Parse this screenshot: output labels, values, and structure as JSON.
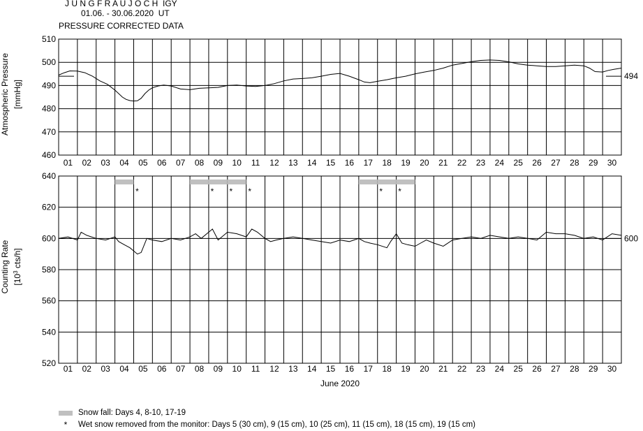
{
  "header": {
    "station": "J U N G F R A U J O C H  IGY",
    "period": "01.06. - 30.06.2020  UT",
    "subtitle": "PRESSURE CORRECTED DATA"
  },
  "legend": {
    "snow_label": "Snow fall: Days 4, 8-10, 17-19",
    "star_glyph": "*",
    "wet_label": "Wet snow removed from the monitor: Days 5 (30 cm), 9 (15 cm), 10 (25 cm), 11 (15 cm), 18 (15 cm), 19 (15 cm)"
  },
  "colors": {
    "line": "#000000",
    "grid": "#000000",
    "snow_bar": "#c0c0c0",
    "background": "#ffffff"
  },
  "chart_data": [
    {
      "type": "line",
      "id": "pressure",
      "ylabel": "Atmospheric Pressure",
      "yunit": "[mmHg]",
      "ylim": [
        460,
        510
      ],
      "yticks": [
        460,
        470,
        480,
        490,
        500,
        510
      ],
      "xlim": [
        0,
        30
      ],
      "xtick_labels": [
        "01",
        "02",
        "03",
        "04",
        "05",
        "06",
        "07",
        "08",
        "09",
        "10",
        "11",
        "12",
        "13",
        "14",
        "15",
        "16",
        "17",
        "18",
        "19",
        "20",
        "21",
        "22",
        "23",
        "24",
        "25",
        "26",
        "27",
        "28",
        "29",
        "30"
      ],
      "reference": {
        "value": 494,
        "label": "494"
      },
      "grid": true,
      "series": [
        {
          "x": [
            0,
            0.3,
            0.6,
            1,
            1.4,
            1.8,
            2.2,
            2.6,
            3,
            3.2,
            3.4,
            3.6,
            3.8,
            4,
            4.2,
            4.4,
            4.6,
            4.8,
            5,
            5.3,
            5.6,
            6,
            6.5,
            7,
            7.5,
            8,
            8.5,
            9,
            9.5,
            10,
            10.5,
            11,
            11.5,
            12,
            12.5,
            13,
            13.5,
            14,
            14.5,
            15,
            15.5,
            16,
            16.3,
            16.6,
            17,
            17.5,
            18,
            18.5,
            19,
            19.5,
            20,
            20.5,
            21,
            21.5,
            22,
            22.5,
            23,
            23.5,
            24,
            24.5,
            25,
            25.5,
            26,
            26.5,
            27,
            27.5,
            28,
            28.3,
            28.6,
            29,
            29.3,
            29.6,
            30
          ],
          "values": [
            494.5,
            495.5,
            496.3,
            496.2,
            495.5,
            494,
            492,
            490.5,
            488,
            486.5,
            485,
            484,
            483.5,
            483.3,
            483.4,
            484.5,
            486.5,
            488,
            489,
            489.8,
            490.2,
            489.8,
            488.5,
            488.2,
            488.8,
            489,
            489.2,
            490,
            490.2,
            489.8,
            489.6,
            490,
            490.8,
            492,
            492.8,
            493,
            493.3,
            494,
            494.8,
            495.2,
            494,
            492.5,
            491.5,
            491.2,
            491.8,
            492.5,
            493.3,
            494,
            495,
            495.8,
            496.5,
            497.5,
            498.8,
            499.5,
            500.3,
            500.8,
            501,
            500.8,
            500.2,
            499.3,
            498.8,
            498.5,
            498.2,
            498.2,
            498.5,
            498.8,
            498.5,
            497.5,
            496,
            495.8,
            496.5,
            497,
            497.5
          ]
        }
      ]
    },
    {
      "type": "line",
      "id": "counting",
      "ylabel": "Counting Rate",
      "yunit_base": "[10",
      "yunit_exp": "3",
      "yunit_tail": " cts/h]",
      "ylim": [
        520,
        640
      ],
      "yticks": [
        520,
        540,
        560,
        580,
        600,
        620,
        640
      ],
      "xlim": [
        0,
        30
      ],
      "xtick_labels": [
        "01",
        "02",
        "03",
        "04",
        "05",
        "06",
        "07",
        "08",
        "09",
        "10",
        "11",
        "12",
        "13",
        "14",
        "15",
        "16",
        "17",
        "18",
        "19",
        "20",
        "21",
        "22",
        "23",
        "24",
        "25",
        "26",
        "27",
        "28",
        "29",
        "30"
      ],
      "xlabel": "June 2020",
      "reference": {
        "value": 600,
        "label": "600"
      },
      "grid": true,
      "snow_days": [
        4,
        8,
        9,
        10,
        17,
        18,
        19
      ],
      "wet_removal_days": [
        5,
        9,
        10,
        11,
        18,
        19
      ],
      "series": [
        {
          "x": [
            0,
            0.5,
            1,
            1.2,
            1.5,
            2,
            2.5,
            3,
            3.2,
            3.5,
            3.8,
            4,
            4.2,
            4.4,
            4.7,
            5,
            5.5,
            6,
            6.5,
            7,
            7.3,
            7.6,
            8,
            8.2,
            8.5,
            9,
            9.5,
            10,
            10.3,
            10.6,
            11,
            11.3,
            11.6,
            12,
            12.5,
            13,
            13.5,
            14,
            14.5,
            15,
            15.5,
            16,
            16.3,
            16.6,
            17,
            17.5,
            17.7,
            18,
            18.3,
            18.6,
            19,
            19.3,
            19.6,
            20,
            20.5,
            21,
            21.5,
            22,
            22.5,
            23,
            23.5,
            24,
            24.5,
            25,
            25.5,
            26,
            26.5,
            27,
            27.5,
            28,
            28.5,
            29,
            29.5,
            30
          ],
          "values": [
            600,
            601,
            599,
            604,
            602,
            600,
            599,
            601,
            598,
            596,
            594,
            592,
            590,
            591,
            600,
            599,
            598,
            600,
            599,
            601,
            603,
            600,
            604,
            606,
            599,
            604,
            603,
            601,
            606,
            604,
            600,
            598,
            599,
            600,
            601,
            600,
            599,
            598,
            597,
            599,
            598,
            600,
            598,
            597,
            596,
            594,
            598,
            603,
            597,
            596,
            595,
            597,
            599,
            597,
            595,
            599,
            600,
            601,
            600,
            602,
            601,
            600,
            601,
            600,
            599,
            604,
            603,
            603,
            602,
            600,
            601,
            599,
            603,
            602
          ]
        }
      ]
    }
  ]
}
